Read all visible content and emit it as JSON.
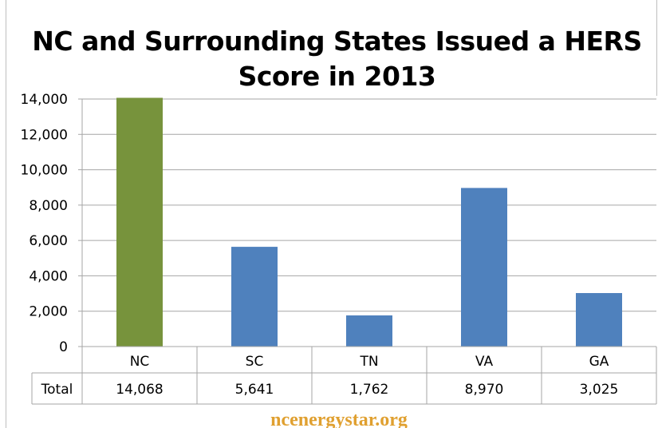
{
  "chart_data": {
    "type": "bar",
    "title": "NC and Surrounding States Issued a HERS Score in 2013",
    "categories": [
      "NC",
      "SC",
      "TN",
      "VA",
      "GA"
    ],
    "values": [
      14068,
      5641,
      1762,
      8970,
      3025
    ],
    "value_labels": [
      "14,068",
      "5,641",
      "1,762",
      "8,970",
      "3,025"
    ],
    "colors": [
      "#77933c",
      "#4f81bd",
      "#4f81bd",
      "#4f81bd",
      "#4f81bd"
    ],
    "ylim": [
      0,
      14000
    ],
    "yticks": [
      0,
      2000,
      4000,
      6000,
      8000,
      10000,
      12000,
      14000
    ],
    "ytick_labels": [
      "0",
      "2,000",
      "4,000",
      "6,000",
      "8,000",
      "10,000",
      "12,000",
      "14,000"
    ],
    "grid": true,
    "xlabel": "",
    "ylabel": "",
    "data_table": {
      "row_label": "Total"
    }
  },
  "watermark": "ncenergystar.org",
  "grid_color": "#a6a6a6"
}
